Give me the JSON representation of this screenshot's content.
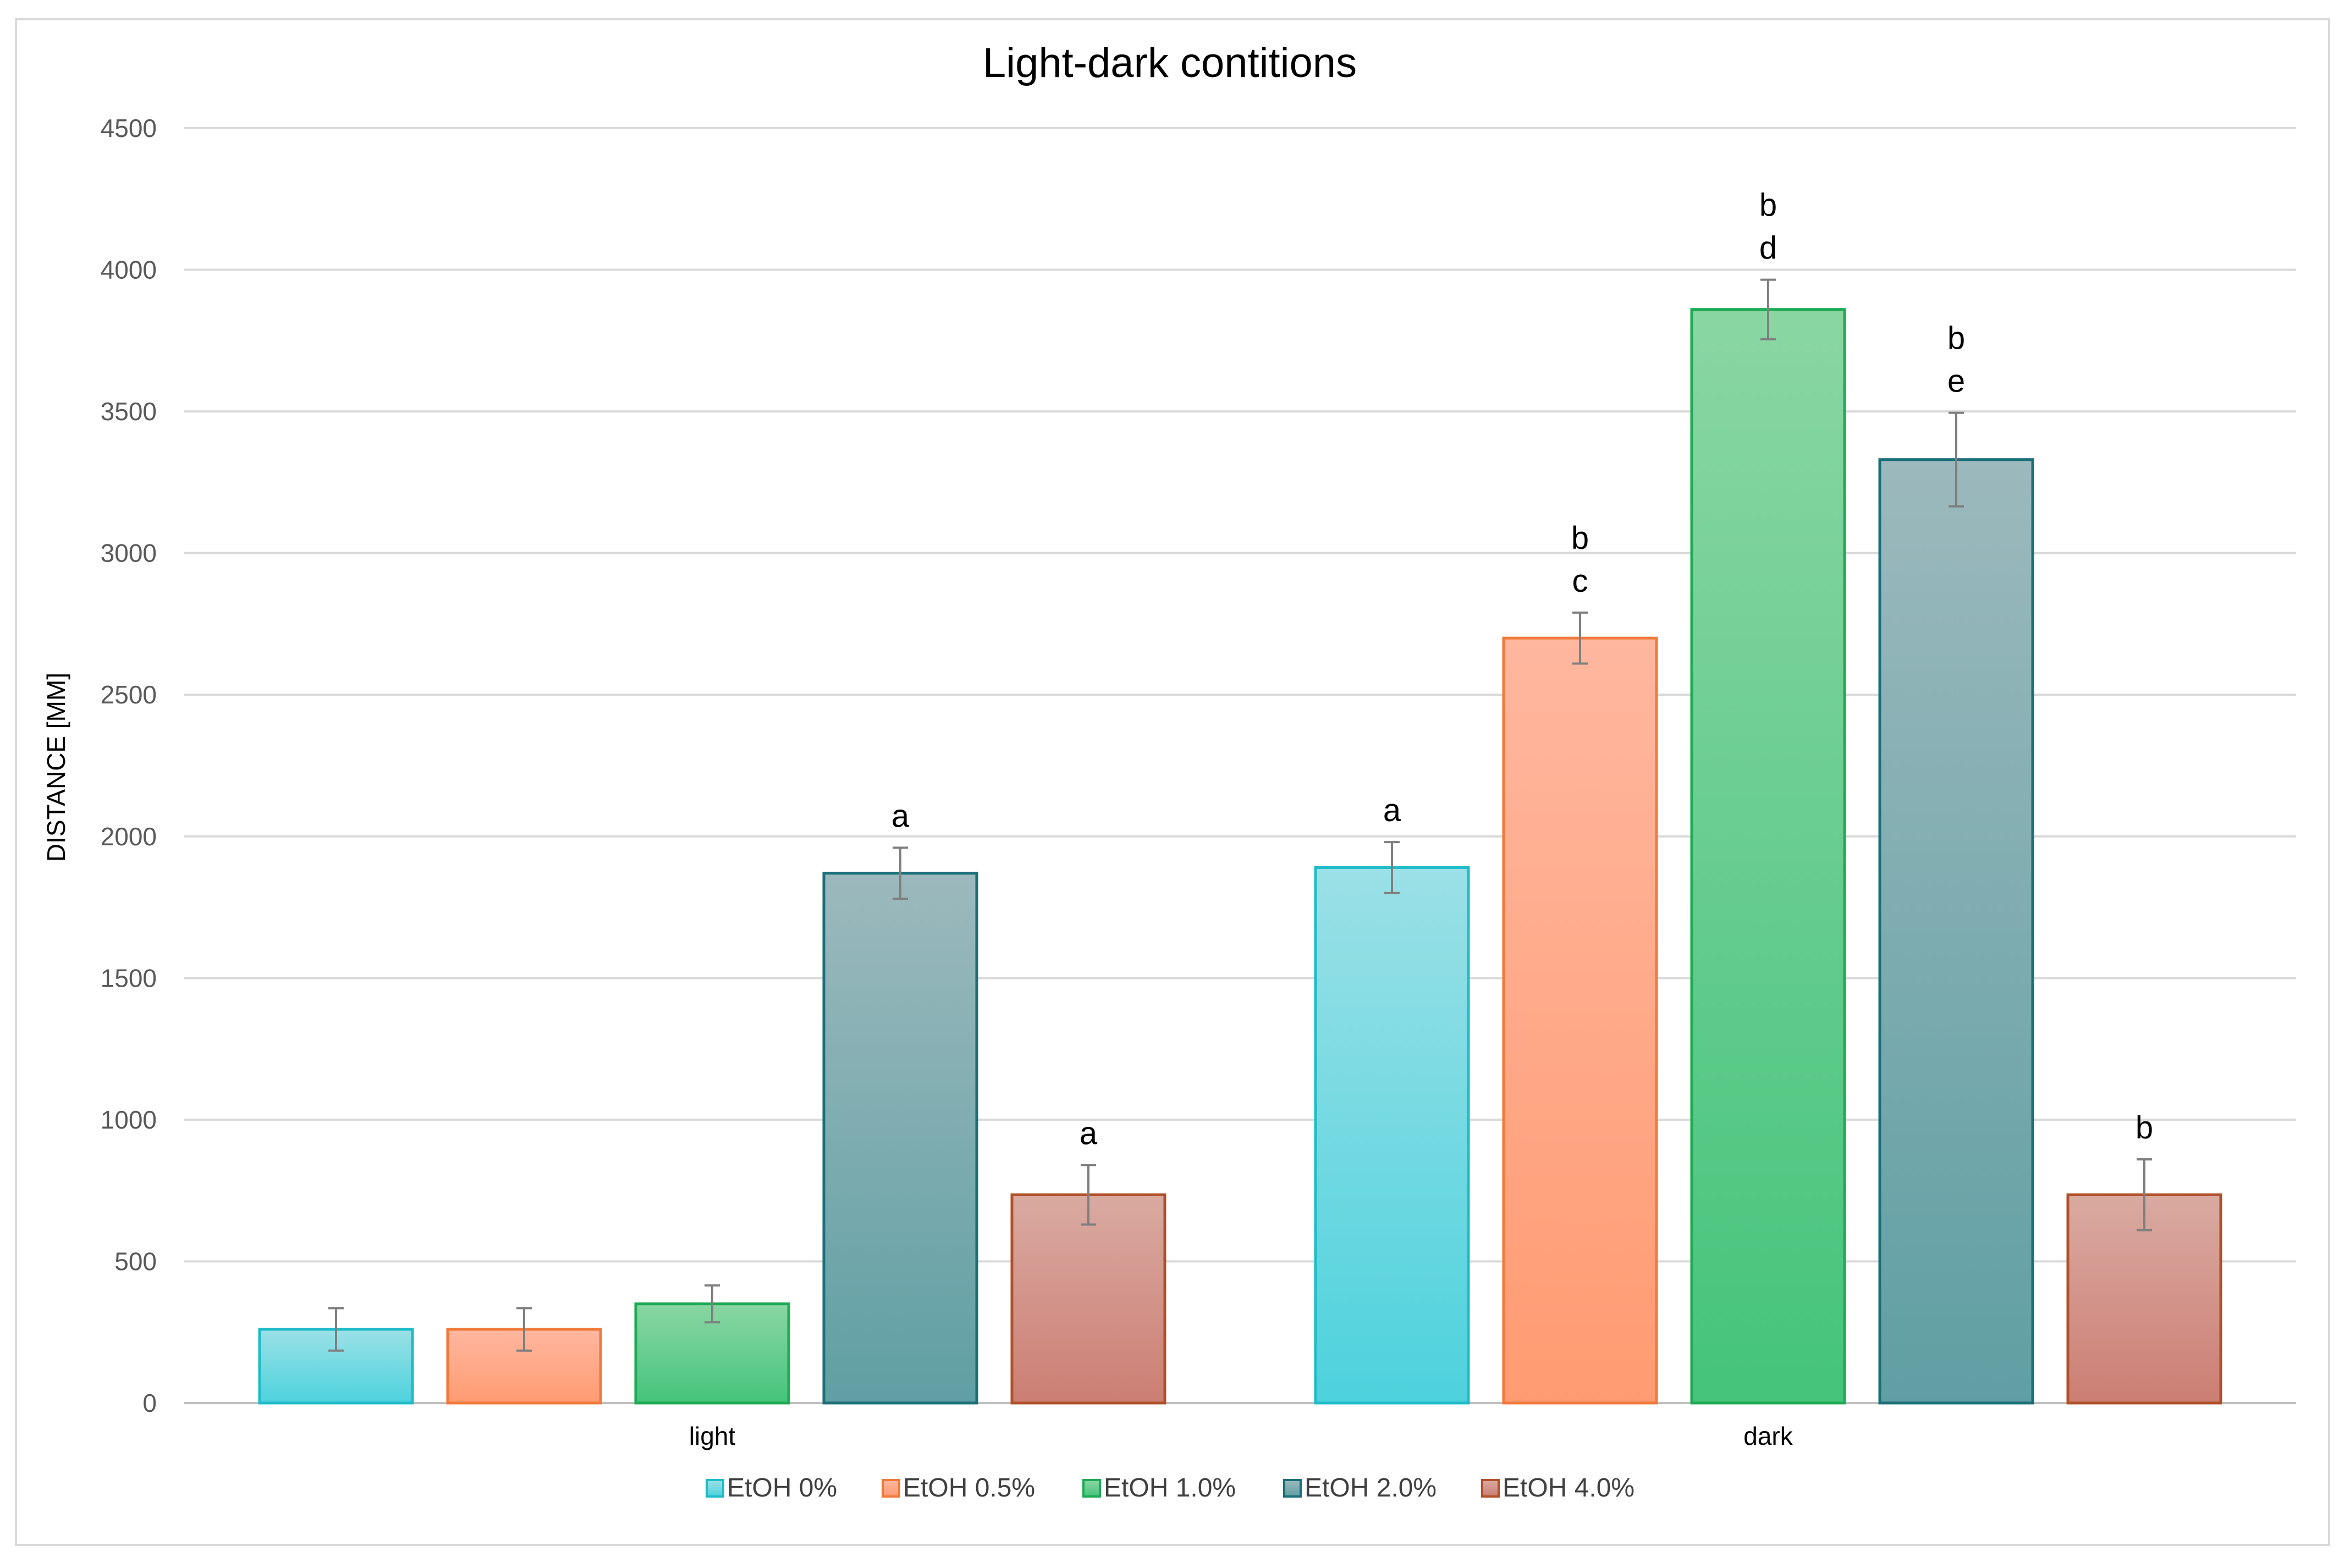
{
  "chart_data": {
    "type": "bar",
    "title": "Light-dark contitions",
    "xlabel": "",
    "ylabel": "DISTANCE [MM]",
    "ylim": [
      0,
      4500
    ],
    "yticks": [
      0,
      500,
      1000,
      1500,
      2000,
      2500,
      3000,
      3500,
      4000,
      4500
    ],
    "grid": true,
    "legend_position": "bottom",
    "categories": [
      "light",
      "dark"
    ],
    "series": [
      {
        "name": "EtOH 0%",
        "values": [
          260,
          1890
        ],
        "errors": [
          75,
          90
        ],
        "labels": [
          [],
          [
            "a"
          ]
        ],
        "color_top": "#9be0e6",
        "color_bottom": "#4dd2dd",
        "edge": "#1fbcc8"
      },
      {
        "name": "EtOH 0.5%",
        "values": [
          260,
          2700
        ],
        "errors": [
          75,
          90
        ],
        "labels": [
          [],
          [
            "b",
            "c"
          ]
        ],
        "color_top": "#ffb79f",
        "color_bottom": "#ff9b72",
        "edge": "#f07a3a"
      },
      {
        "name": "EtOH 1.0%",
        "values": [
          350,
          3860
        ],
        "errors": [
          65,
          105
        ],
        "labels": [
          [],
          [
            "b",
            "d"
          ]
        ],
        "color_top": "#8ad6a3",
        "color_bottom": "#45c47b",
        "edge": "#1faa56"
      },
      {
        "name": "EtOH 2.0%",
        "values": [
          1870,
          3330
        ],
        "errors": [
          90,
          165
        ],
        "labels": [
          [
            "a"
          ],
          [
            "b",
            "e"
          ]
        ],
        "color_top": "#9cb9bd",
        "color_bottom": "#5f9fa3",
        "edge": "#1b6f78"
      },
      {
        "name": "EtOH 4.0%",
        "values": [
          735,
          735
        ],
        "errors": [
          105,
          125
        ],
        "labels": [
          [
            "a"
          ],
          [
            "b"
          ]
        ],
        "color_top": "#d9aaa1",
        "color_bottom": "#cc7e73",
        "edge": "#b0502a"
      }
    ]
  }
}
